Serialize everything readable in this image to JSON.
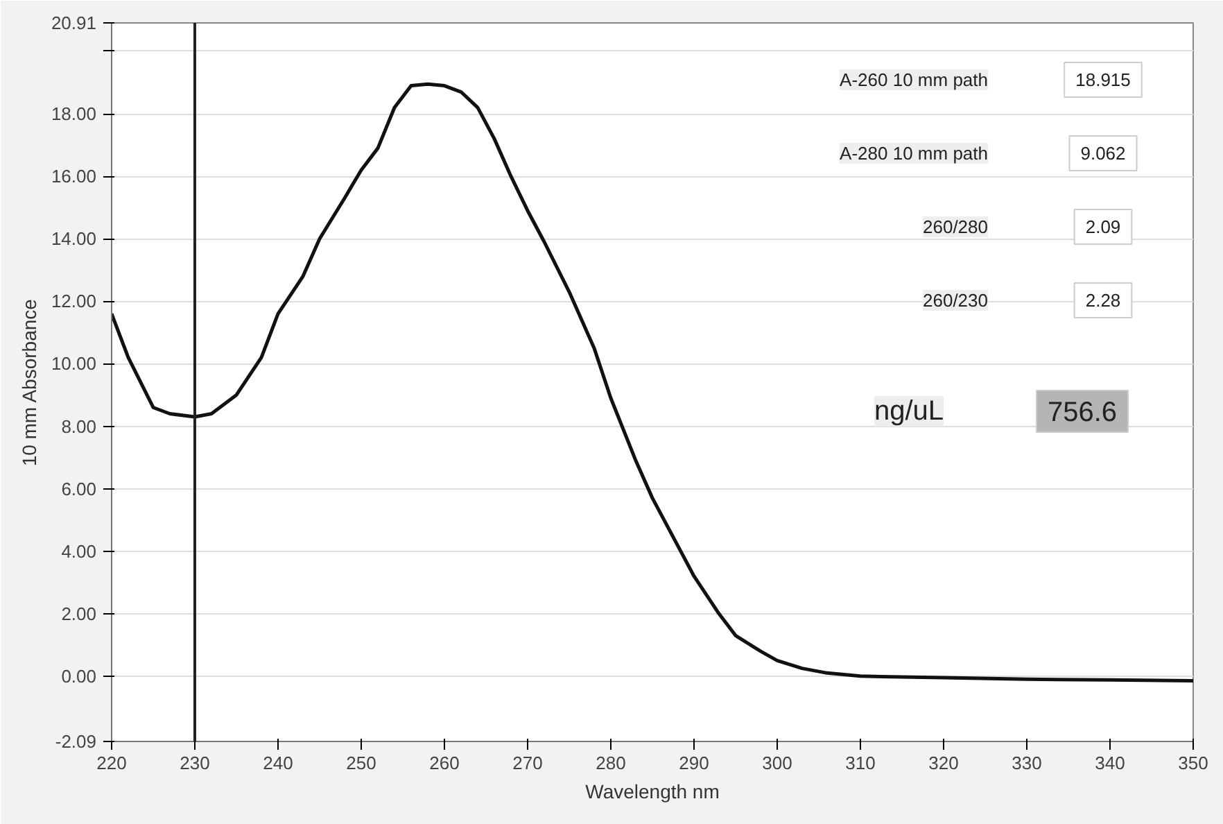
{
  "chart_data": {
    "type": "line",
    "xlabel": "Wavelength nm",
    "ylabel": "10 mm Absorbance",
    "x": [
      220,
      222,
      225,
      227,
      230,
      232,
      235,
      238,
      240,
      243,
      245,
      248,
      250,
      252,
      254,
      256,
      258,
      260,
      262,
      264,
      266,
      268,
      270,
      272,
      275,
      278,
      280,
      283,
      285,
      288,
      290,
      293,
      295,
      298,
      300,
      303,
      306,
      310,
      320,
      330,
      340,
      350
    ],
    "series": [
      {
        "color": "#111111",
        "values": [
          11.6,
          10.2,
          8.6,
          8.4,
          8.3,
          8.4,
          9.0,
          10.2,
          11.6,
          12.8,
          14.0,
          15.3,
          16.2,
          16.9,
          18.2,
          18.9,
          18.95,
          18.9,
          18.7,
          18.2,
          17.2,
          16.0,
          14.9,
          13.9,
          12.3,
          10.5,
          8.9,
          6.9,
          5.7,
          4.2,
          3.2,
          2.0,
          1.3,
          0.8,
          0.5,
          0.25,
          0.1,
          0.0,
          -0.05,
          -0.1,
          -0.12,
          -0.15
        ]
      }
    ],
    "xlim": [
      220,
      350
    ],
    "ylim": [
      -2.09,
      20.91
    ],
    "xticks": [
      220,
      230,
      240,
      250,
      260,
      270,
      280,
      290,
      300,
      310,
      320,
      330,
      340,
      350
    ],
    "yticks": [
      {
        "value": -2.09,
        "label": "-2.09"
      },
      {
        "value": 0,
        "label": "0.00"
      },
      {
        "value": 2,
        "label": "2.00"
      },
      {
        "value": 4,
        "label": "4.00"
      },
      {
        "value": 6,
        "label": "6.00"
      },
      {
        "value": 8,
        "label": "8.00"
      },
      {
        "value": 10,
        "label": "10.00"
      },
      {
        "value": 12,
        "label": "12.00"
      },
      {
        "value": 14,
        "label": "14.00"
      },
      {
        "value": 16,
        "label": "16.00"
      },
      {
        "value": 18,
        "label": "18.00"
      },
      {
        "value": 20,
        "label": null
      },
      {
        "value": 20.91,
        "label": "20.91"
      }
    ],
    "grid": "y",
    "marker": "none",
    "line_style": "solid",
    "ref_lines": [
      {
        "axis": "x",
        "value": 230,
        "color": "#222222"
      }
    ],
    "annotations": [
      "A-260 10 mm path",
      "18.915",
      "A-280 10 mm path",
      "9.062",
      "260/280",
      "2.09",
      "260/230",
      "2.28",
      "ng/uL",
      "756.6"
    ]
  }
}
